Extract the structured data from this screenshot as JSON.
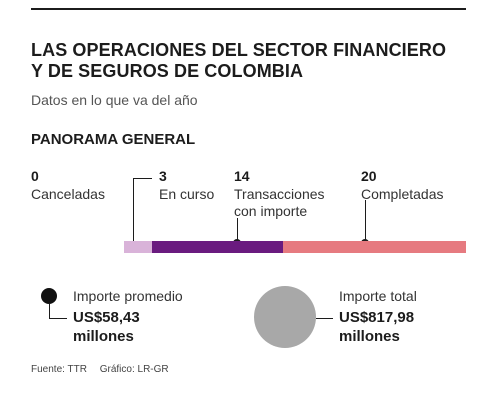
{
  "header": {
    "title_line1": "LAS OPERACIONES DEL SECTOR FINANCIERO",
    "title_line2": "Y DE SEGUROS DE COLOMBIA",
    "subtitle": "Datos en lo que va del año",
    "section": "PANORAMA GENERAL"
  },
  "chart_data": {
    "type": "bar",
    "title": "LAS OPERACIONES DEL SECTOR FINANCIERO Y DE SEGUROS DE COLOMBIA",
    "subtitle": "Datos en lo que va del año",
    "categories": [
      "Canceladas",
      "En curso",
      "Transacciones con importe",
      "Completadas"
    ],
    "values": [
      0,
      3,
      14,
      20
    ],
    "stats": [
      {
        "value": "0",
        "label1": "Canceladas",
        "label2": ""
      },
      {
        "value": "3",
        "label1": "En curso",
        "label2": ""
      },
      {
        "value": "14",
        "label1": "Transacciones",
        "label2": "con importe"
      },
      {
        "value": "20",
        "label1": "Completadas",
        "label2": ""
      }
    ],
    "bar_colors": [
      "#d9b3d9",
      "#6a1b7f",
      "#e67a80"
    ],
    "legend": [
      {
        "label": "Importe promedio",
        "value_line1": "US$58,43",
        "value_line2": "millones",
        "color": "#111111"
      },
      {
        "label": "Importe total",
        "value_line1": "US$817,98",
        "value_line2": "millones",
        "color": "#a8a8a8"
      }
    ]
  },
  "footer": {
    "source": "Fuente: TTR",
    "graphic": "Gráfico: LR-GR"
  }
}
